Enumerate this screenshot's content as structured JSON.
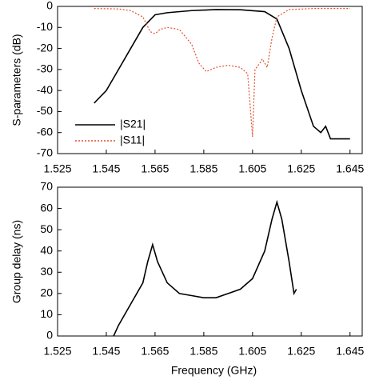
{
  "chart_data": [
    {
      "type": "line",
      "y_label": "S-parameters (dB)",
      "xlim": [
        1.525,
        1.65
      ],
      "xticks": [
        1.525,
        1.545,
        1.565,
        1.585,
        1.605,
        1.625,
        1.645
      ],
      "ylim": [
        -70,
        0
      ],
      "yticks": [
        -70,
        -60,
        -50,
        -40,
        -30,
        -20,
        -10,
        0
      ],
      "legend": "lower left",
      "series": [
        {
          "name": "|S21|",
          "color": "#000000",
          "line_style": "solid",
          "x": [
            1.54,
            1.545,
            1.55,
            1.555,
            1.56,
            1.565,
            1.57,
            1.58,
            1.59,
            1.6,
            1.61,
            1.615,
            1.62,
            1.625,
            1.63,
            1.633,
            1.635,
            1.637,
            1.64,
            1.645
          ],
          "values": [
            -46,
            -40,
            -30,
            -20,
            -10,
            -4,
            -3,
            -2,
            -1.5,
            -1.6,
            -2.5,
            -6,
            -20,
            -40,
            -57,
            -60,
            -57,
            -63,
            -63,
            -63
          ]
        },
        {
          "name": "|S11|",
          "color": "#e0502a",
          "line_style": "dotted",
          "x": [
            1.54,
            1.55,
            1.555,
            1.56,
            1.563,
            1.565,
            1.567,
            1.57,
            1.575,
            1.58,
            1.583,
            1.586,
            1.59,
            1.595,
            1.6,
            1.603,
            1.605,
            1.606,
            1.608,
            1.609,
            1.611,
            1.613,
            1.615,
            1.62,
            1.63,
            1.645
          ],
          "values": [
            -1,
            -1.2,
            -2,
            -5,
            -12,
            -13,
            -11,
            -10,
            -11,
            -18,
            -27,
            -31,
            -29,
            -28,
            -29,
            -32,
            -62,
            -30,
            -27,
            -25,
            -29,
            -15,
            -5,
            -1.5,
            -1,
            -1
          ]
        }
      ]
    },
    {
      "type": "line",
      "x_label": "Frequency (GHz)",
      "y_label": "Group delay (ns)",
      "xlim": [
        1.525,
        1.65
      ],
      "xticks": [
        1.525,
        1.545,
        1.565,
        1.585,
        1.605,
        1.625,
        1.645
      ],
      "ylim": [
        0,
        70
      ],
      "yticks": [
        0,
        10,
        20,
        30,
        40,
        50,
        60,
        70
      ],
      "series": [
        {
          "color": "#000000",
          "line_style": "solid",
          "x": [
            1.548,
            1.55,
            1.555,
            1.56,
            1.562,
            1.564,
            1.566,
            1.57,
            1.575,
            1.58,
            1.585,
            1.59,
            1.595,
            1.6,
            1.605,
            1.61,
            1.613,
            1.615,
            1.617,
            1.62,
            1.622,
            1.623
          ],
          "values": [
            0,
            5,
            15,
            25,
            35,
            43,
            35,
            25,
            20,
            19,
            18,
            18,
            20,
            22,
            27,
            40,
            55,
            63,
            55,
            35,
            20,
            22
          ]
        }
      ]
    }
  ]
}
